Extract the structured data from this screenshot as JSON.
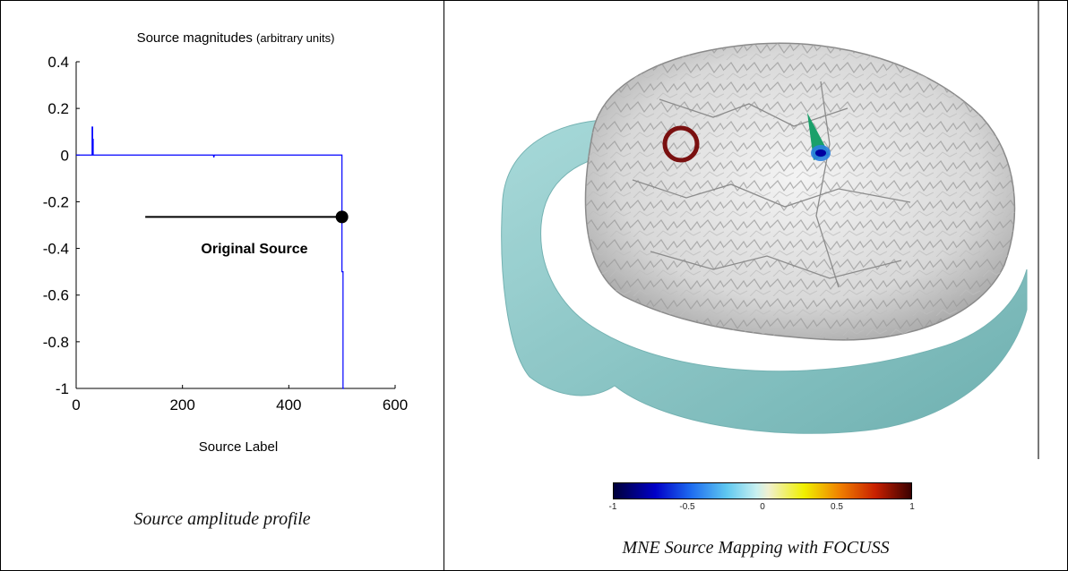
{
  "left": {
    "caption": "Source amplitude profile",
    "annotation": "Original Source"
  },
  "right": {
    "caption": "MNE Source Mapping with FOCUSS",
    "colorbar": {
      "ticks": [
        "-1",
        "-0.5",
        "0",
        "0.5",
        "1"
      ],
      "colormap": [
        "#00003a",
        "#0000c8",
        "#1e6cf0",
        "#5fc8f0",
        "#c8f0f0",
        "#f0f0d0",
        "#f0f000",
        "#f08000",
        "#c82000",
        "#3a0000"
      ]
    },
    "marker_color": "#7a1010"
  },
  "chart_data": {
    "type": "line",
    "title": "Source magnitudes",
    "title_suffix": "(arbitrary units)",
    "xlabel": "Source Label",
    "ylabel": "",
    "xlim": [
      0,
      600
    ],
    "ylim": [
      -1,
      0.4
    ],
    "xticks": [
      0,
      200,
      400,
      600
    ],
    "yticks": [
      0.4,
      0.2,
      0,
      -0.2,
      -0.4,
      -0.6,
      -0.8,
      -1
    ],
    "grid": false,
    "series": [
      {
        "color": "#0000ff",
        "x": [
          0,
          30,
          30,
          31,
          31,
          32,
          32,
          258,
          259,
          260,
          500,
          500,
          501,
          502,
          502,
          504
        ],
        "y": [
          0,
          0,
          0.12,
          0.12,
          0,
          0.07,
          0,
          0,
          -0.01,
          0,
          0,
          -0.5,
          -0.5,
          -0.5,
          -1,
          -1
        ]
      }
    ],
    "highlight_point": {
      "x": 500,
      "y": -0.265
    },
    "annotation_line": {
      "x_from": 130,
      "x_to": 500,
      "y": -0.265
    }
  }
}
